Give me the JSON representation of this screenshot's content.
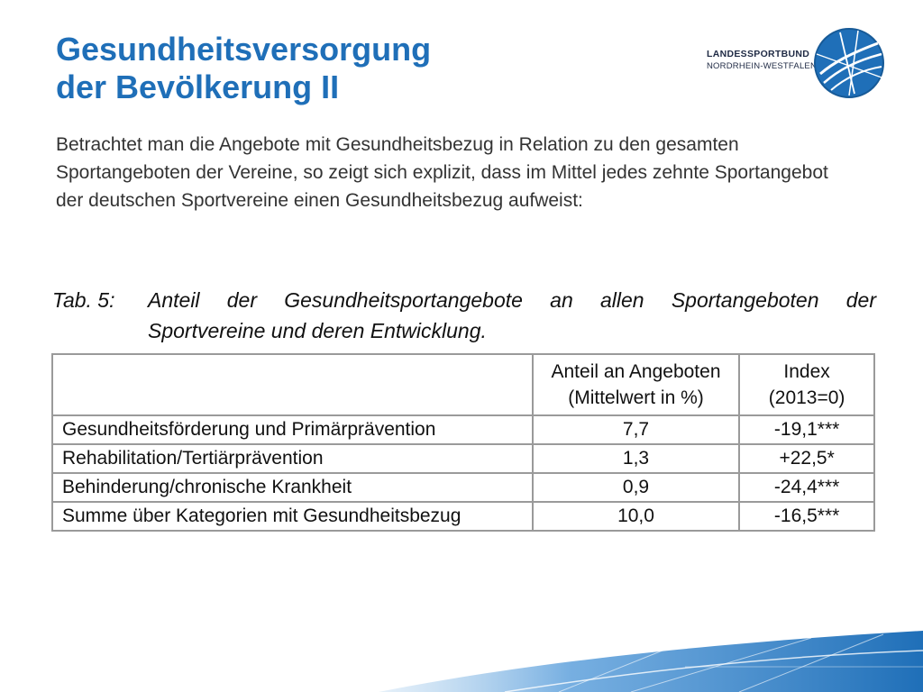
{
  "slide": {
    "title_line1": "Gesundheitsversorgung",
    "title_line2": "der Bevölkerung II",
    "intro": "Betrachtet man die Angebote mit Gesundheitsbezug in Relation zu den gesamten Sportangeboten der Vereine, so zeigt sich explizit, dass im Mittel jedes zehnte Sportangebot der deutschen Sportvereine einen Gesundheitsbezug aufweist:"
  },
  "logo": {
    "line1": "LANDESSPORTBUND",
    "line2": "NORDRHEIN-WESTFALEN",
    "brand_color": "#1f6fb8"
  },
  "table": {
    "caption_label": "Tab. 5:",
    "caption_line1": "Anteil der Gesundheitsportangebote an allen Sportangeboten der",
    "caption_line2": "Sportvereine und deren Entwicklung.",
    "headers": {
      "col1": "",
      "col2_line1": "Anteil an Angeboten",
      "col2_line2": "(Mittelwert in %)",
      "col3_line1": "Index",
      "col3_line2": "(2013=0)"
    },
    "rows": [
      {
        "category": "Gesundheitsförderung und Primärprävention",
        "share": "7,7",
        "index": "-19,1***"
      },
      {
        "category": "Rehabilitation/Tertiärprävention",
        "share": "1,3",
        "index": "+22,5*"
      },
      {
        "category": "Behinderung/chronische Krankheit",
        "share": "0,9",
        "index": "-24,4***"
      },
      {
        "category": "Summe über Kategorien mit Gesundheitsbezug",
        "share": "10,0",
        "index": "-16,5***"
      }
    ]
  },
  "colors": {
    "title": "#1f6fb8",
    "wave": "#1f6fb8"
  }
}
